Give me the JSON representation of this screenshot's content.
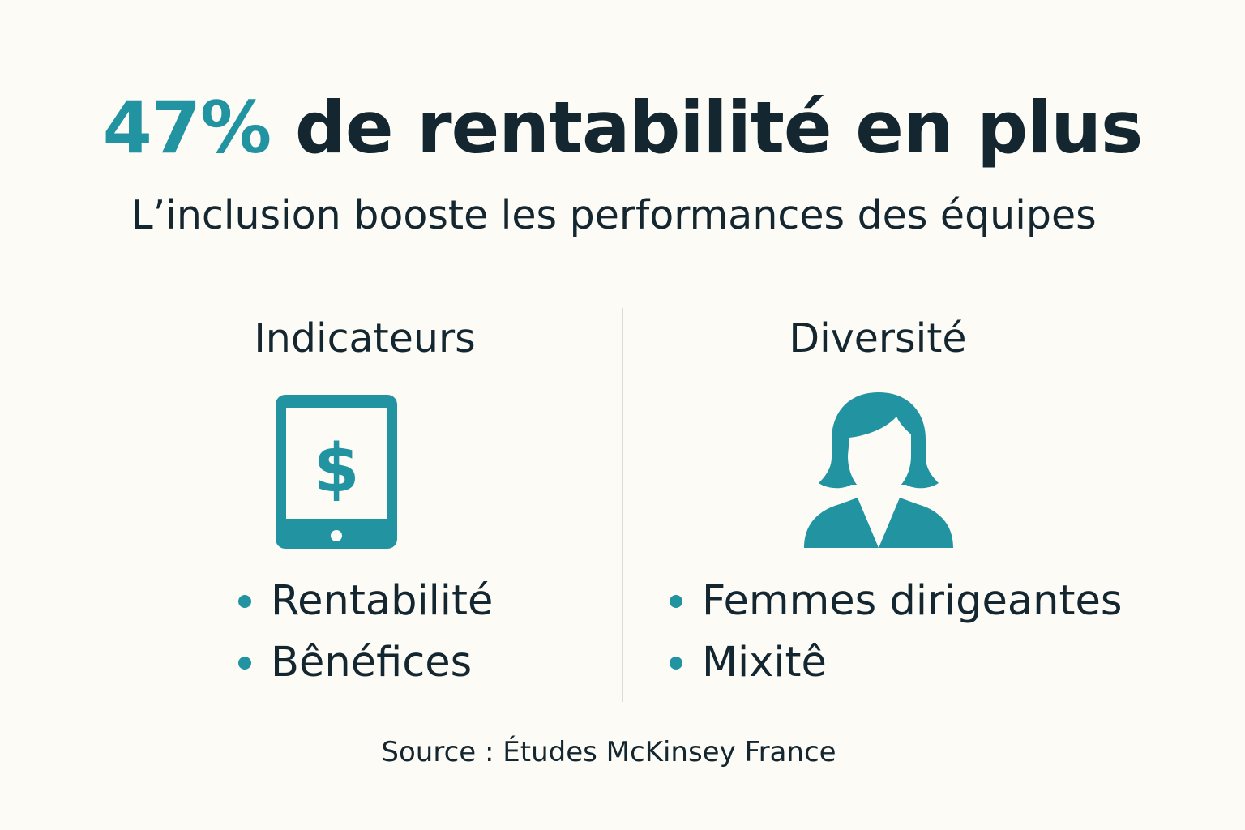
{
  "headline": {
    "accent": "47%",
    "rest": "de rentabilité en plus"
  },
  "subtitle": "L’inclusion booste les performances des équipes",
  "columns": {
    "left": {
      "title": "Indicateurs",
      "icon": "tablet-dollar-icon",
      "items": [
        "Rentabilité",
        "Bênéfices"
      ]
    },
    "right": {
      "title": "Diversité",
      "icon": "woman-person-icon",
      "items": [
        "Femmes dirigeantes",
        "Mixitê"
      ]
    }
  },
  "source": "Source : Études McKinsey France",
  "colors": {
    "accent": "#2293a0",
    "text": "#14262f",
    "background": "#fcfbf6",
    "divider": "#d7ddd9"
  },
  "tablet_icon_glyph": "$"
}
